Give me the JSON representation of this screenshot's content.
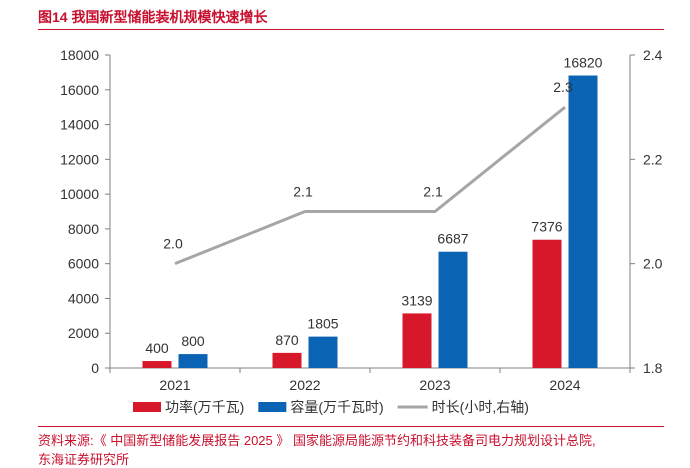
{
  "figure": {
    "title": "图14 我国新型储能装机规模快速增长",
    "source": "资料来源:《 中国新型储能发展报告 2025 》 国家能源局能源节约和科技装备司电力规划设计总院,",
    "source_line2": "东海证券研究所"
  },
  "chart_data": {
    "type": "bar",
    "categories": [
      "2021",
      "2022",
      "2023",
      "2024"
    ],
    "series": [
      {
        "name": "功率(万千瓦)",
        "type": "bar",
        "axis": "left",
        "color": "#d7182a",
        "values": [
          400,
          870,
          3139,
          7376
        ]
      },
      {
        "name": "容量(万千瓦时)",
        "type": "bar",
        "axis": "left",
        "color": "#0b63b4",
        "values": [
          800,
          1805,
          6687,
          16820
        ]
      },
      {
        "name": "时长(小时,右轴)",
        "type": "line",
        "axis": "right",
        "color": "#a6a6a6",
        "values": [
          2.0,
          2.1,
          2.1,
          2.3
        ],
        "labels": [
          "2.0",
          "2.1",
          "2.1",
          "2.3"
        ]
      }
    ],
    "ylim": [
      0,
      18000
    ],
    "yticks": [
      "0",
      "2000",
      "4000",
      "6000",
      "8000",
      "10000",
      "12000",
      "14000",
      "16000",
      "18000"
    ],
    "y2lim": [
      1.8,
      2.4
    ],
    "y2ticks": [
      "1.8",
      "2.0",
      "2.2",
      "2.4"
    ],
    "grid": false,
    "legend_position": "bottom"
  }
}
